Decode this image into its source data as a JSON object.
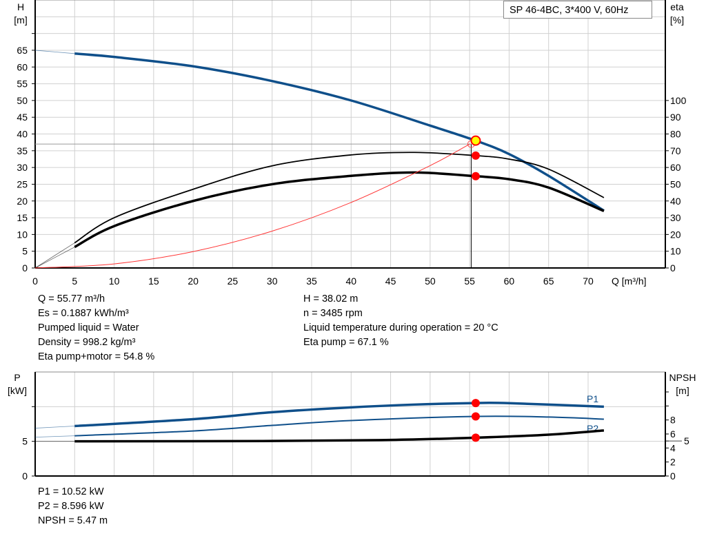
{
  "title_box": "SP 46-4BC, 3*400 V, 60Hz",
  "colors": {
    "head": "#0f4f8a",
    "eta": "#000000",
    "system": "#ff3333",
    "duty_point": "#ff0000",
    "duty_fill": "#ffff00",
    "grid": "#d0d0d0"
  },
  "chart_data": [
    {
      "type": "line",
      "xlabel": "Q [m³/h]",
      "ylabel": "H\n[m]",
      "y2label": "eta\n[%]",
      "xlim": [
        0,
        77
      ],
      "ylim": [
        0,
        80
      ],
      "y2lim": [
        0,
        160
      ],
      "grid": true,
      "xticks": [
        0,
        5,
        10,
        15,
        20,
        25,
        30,
        35,
        40,
        45,
        50,
        55,
        60,
        65,
        70
      ],
      "yticks": [
        0,
        5,
        10,
        15,
        20,
        25,
        30,
        35,
        40,
        45,
        50,
        55,
        60,
        65
      ],
      "y2ticks": [
        0,
        10,
        20,
        30,
        40,
        50,
        60,
        70,
        80,
        90,
        100
      ],
      "series": [
        {
          "key": "H",
          "axis": "left",
          "x": [
            0,
            5,
            10,
            20,
            30,
            40,
            50,
            55.77,
            60,
            65,
            72
          ],
          "values": [
            65,
            64,
            63,
            60.2,
            55.8,
            50,
            42.5,
            38.02,
            34,
            27.5,
            17.1
          ]
        },
        {
          "key": "eta_pump",
          "axis": "right",
          "x": [
            0,
            5,
            10,
            20,
            30,
            40,
            48,
            55.77,
            60,
            65,
            72
          ],
          "values": [
            0,
            15,
            30,
            47,
            61,
            67.5,
            69,
            67.1,
            65,
            59,
            42
          ]
        },
        {
          "key": "eta_pump_motor",
          "axis": "right",
          "x": [
            0,
            5,
            10,
            20,
            30,
            40,
            48,
            55.77,
            60,
            65,
            72
          ],
          "values": [
            0,
            12.5,
            25,
            40,
            50,
            55,
            57,
            54.8,
            53,
            48,
            34
          ]
        },
        {
          "key": "system",
          "axis": "left",
          "x": [
            0,
            10,
            20,
            30,
            40,
            50,
            55
          ],
          "values": [
            0,
            1.22,
            4.89,
            11,
            19.56,
            30.56,
            36.98
          ]
        }
      ],
      "duty_point": {
        "Q": 55.77,
        "H": 38.02,
        "eta_pump": 67.1,
        "eta_pump_motor": 54.8
      }
    },
    {
      "type": "line",
      "ylabel": "P\n[kW]",
      "y2label": "NPSH\n[m]",
      "xlim": [
        0,
        77
      ],
      "ylim": [
        0,
        15
      ],
      "y2lim": [
        0,
        14.85
      ],
      "grid": true,
      "yticks": [
        0,
        5,
        10
      ],
      "yticks_labeled": [
        0,
        5
      ],
      "y2ticks": [
        0,
        2,
        4,
        5,
        6,
        8,
        10,
        12
      ],
      "y2ticks_labeled": [
        0,
        2,
        4,
        5,
        6,
        8
      ],
      "series": [
        {
          "name": "P1",
          "axis": "left",
          "x": [
            0,
            5,
            20,
            30,
            40,
            48,
            55.77,
            60,
            72
          ],
          "values": [
            6.9,
            7.2,
            8.2,
            9.2,
            9.9,
            10.3,
            10.52,
            10.5,
            10.0
          ]
        },
        {
          "name": "P2",
          "axis": "left",
          "x": [
            0,
            5,
            20,
            30,
            40,
            55.77,
            65,
            72
          ],
          "values": [
            5.6,
            5.8,
            6.5,
            7.3,
            8.0,
            8.596,
            8.5,
            8.2
          ]
        },
        {
          "key": "NPSH",
          "axis": "right",
          "x": [
            0,
            5,
            30,
            45,
            55.77,
            65,
            72
          ],
          "values": [
            4.95,
            4.95,
            5.0,
            5.15,
            5.47,
            5.9,
            6.5
          ]
        }
      ]
    }
  ],
  "info_top_left": [
    "Q = 55.77 m³/h",
    "Es = 0.1887 kWh/m³",
    "Pumped liquid = Water",
    "Density = 998.2 kg/m³",
    "Eta pump+motor = 54.8 %"
  ],
  "info_top_right": [
    "H = 38.02 m",
    "n = 3485 rpm",
    "Liquid temperature during operation = 20 °C",
    "Eta pump = 67.1 %"
  ],
  "info_bottom": [
    "P1 = 10.52 kW",
    "P2 = 8.596 kW",
    "NPSH = 5.47 m"
  ]
}
